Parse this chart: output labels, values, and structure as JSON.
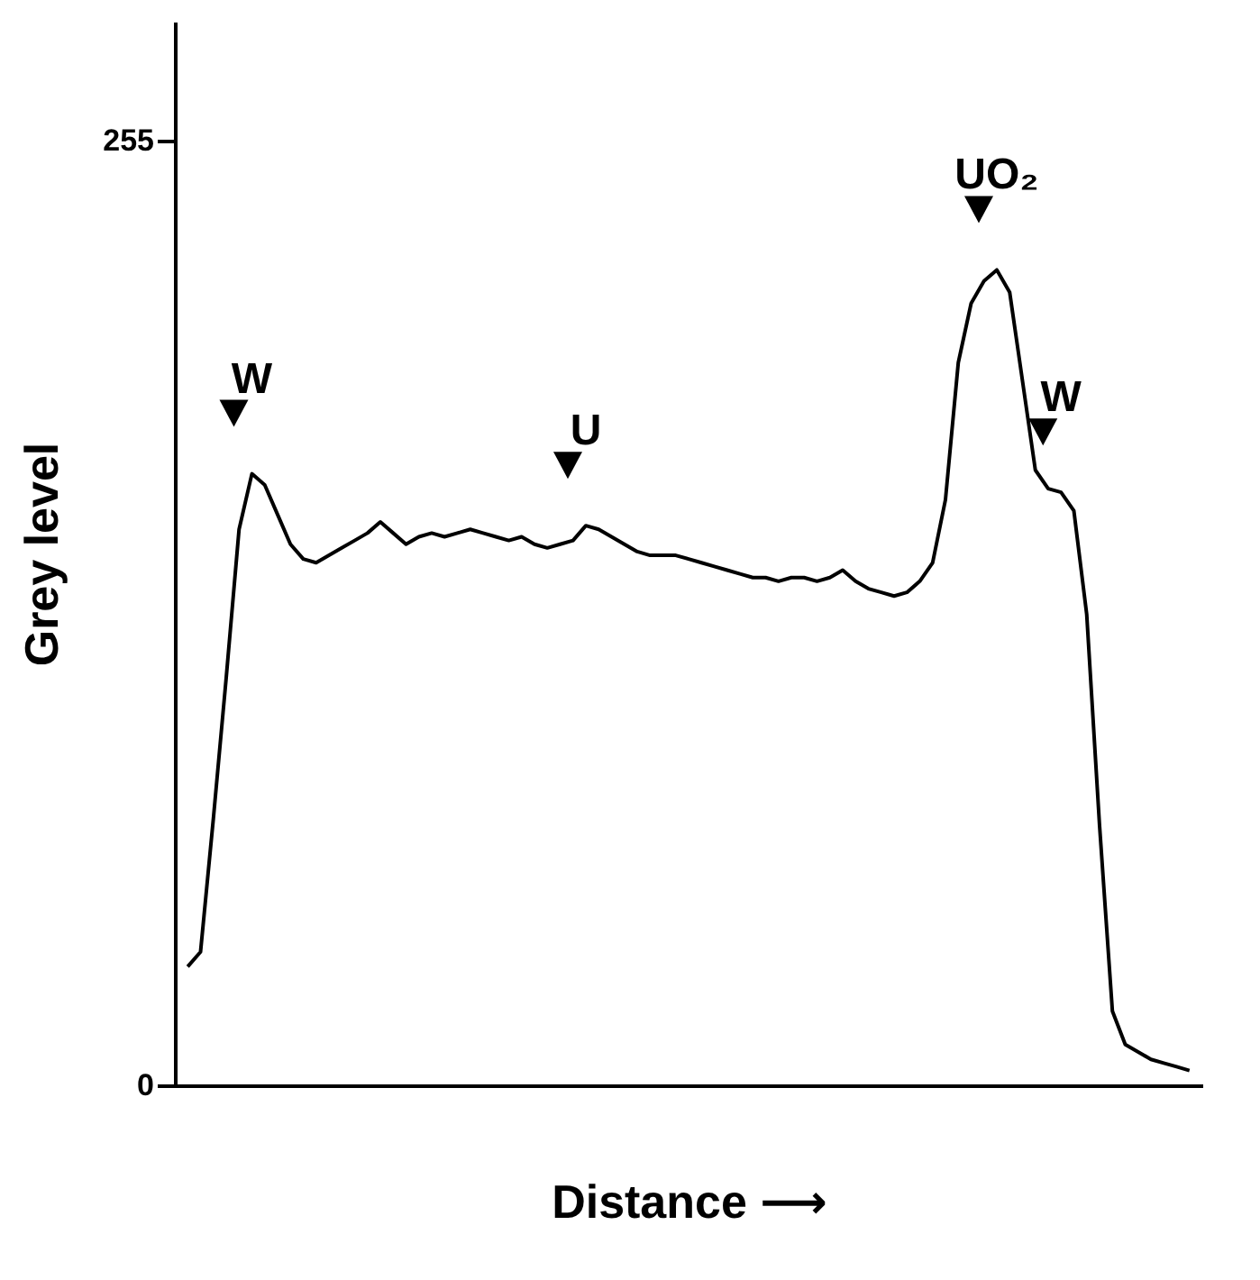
{
  "chart_data": {
    "type": "line",
    "xlabel": "Distance ⟶",
    "ylabel": "Grey level",
    "categories": [
      null,
      null,
      null,
      null,
      null,
      null,
      null,
      null,
      null,
      null,
      null,
      null,
      null,
      null,
      null,
      null,
      null,
      null,
      null,
      null,
      null,
      null,
      null,
      null,
      null,
      null,
      null,
      null,
      null,
      null,
      null,
      null,
      null,
      null,
      null,
      null,
      null,
      null,
      null,
      null,
      null,
      null,
      null,
      null,
      null,
      null,
      null,
      null,
      null,
      null,
      null,
      null,
      null,
      null,
      null,
      null,
      null,
      null,
      null,
      null,
      null,
      null,
      null,
      null,
      null,
      null,
      null,
      null,
      null,
      null,
      null,
      null,
      null,
      null,
      null,
      null,
      null,
      null,
      null
    ],
    "series": [
      {
        "color": "#000000",
        "values": [
          32,
          36,
          72,
          110,
          150,
          165,
          162,
          154,
          146,
          142,
          141,
          143,
          145,
          147,
          149,
          152,
          149,
          146,
          148,
          149,
          148,
          149,
          150,
          149,
          148,
          147,
          148,
          146,
          145,
          146,
          147,
          151,
          150,
          148,
          146,
          144,
          143,
          143,
          143,
          142,
          141,
          140,
          139,
          138,
          137,
          137,
          136,
          137,
          137,
          136,
          137,
          139,
          136,
          134,
          133,
          132,
          133,
          136,
          141,
          158,
          195,
          211,
          217,
          220,
          214,
          190,
          166,
          161,
          160,
          155,
          127,
          70,
          20,
          11,
          9,
          7,
          6,
          5,
          4
        ]
      }
    ],
    "ylim": [
      0,
      287
    ],
    "yticks": [
      0,
      255
    ],
    "grid": false,
    "marker": "none",
    "line_style": "solid",
    "annotations": [
      {
        "text": "W",
        "y": 165
      },
      {
        "text": "U",
        "y": 151
      },
      {
        "text": "UO₂",
        "y": 220
      },
      {
        "text": "W",
        "y": 160
      }
    ]
  }
}
